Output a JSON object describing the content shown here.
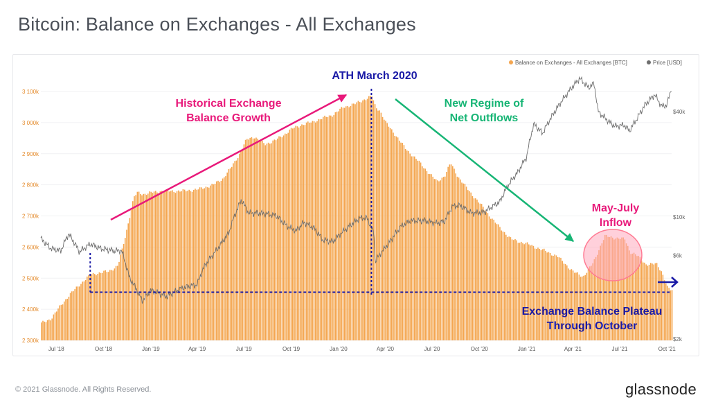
{
  "page": {
    "title": "Bitcoin: Balance on Exchanges - All Exchanges",
    "copyright": "© 2021 Glassnode. All Rights Reserved.",
    "brand": "glassnode"
  },
  "colors": {
    "balance": "#f4a650",
    "price": "#6e6e6e",
    "pink": "#e8197a",
    "navy": "#1a1aa6",
    "green": "#17b575",
    "left_axis": "#e48a2a"
  },
  "chart_data": {
    "type": "bar",
    "title": "Bitcoin: Balance on Exchanges - All Exchanges",
    "legend": {
      "position": "top-right",
      "balance_label": "Balance on Exchanges - All Exchanges [BTC]",
      "price_label": "Price [USD]"
    },
    "x_ticks": [
      "Jul '18",
      "Oct '18",
      "Jan '19",
      "Apr '19",
      "Jul '19",
      "Oct '19",
      "Jan '20",
      "Apr '20",
      "Jul '20",
      "Oct '20",
      "Jan '21",
      "Apr '21",
      "Jul '21",
      "Oct '21"
    ],
    "y_left": {
      "ticks": [
        "2 300k",
        "2 400k",
        "2 500k",
        "2 600k",
        "2 700k",
        "2 800k",
        "2 900k",
        "3 000k",
        "3 100k"
      ],
      "min": 2300000,
      "max": 3100000,
      "unit": "BTC"
    },
    "y_right": {
      "ticks": [
        "$2k",
        "$6k",
        "$10k",
        "$40k"
      ],
      "scale": "log"
    },
    "series": [
      {
        "name": "Balance on Exchanges - All Exchanges [BTC]",
        "kind": "bar",
        "dates": [
          "2018-06-01",
          "2018-06-20",
          "2018-07-10",
          "2018-07-25",
          "2018-08-15",
          "2018-09-05",
          "2018-09-25",
          "2018-10-10",
          "2018-10-28",
          "2018-11-05",
          "2018-11-12",
          "2018-11-20",
          "2018-11-28",
          "2018-12-05",
          "2018-12-15",
          "2019-01-01",
          "2019-01-20",
          "2019-02-10",
          "2019-03-01",
          "2019-04-01",
          "2019-05-01",
          "2019-05-20",
          "2019-06-05",
          "2019-06-20",
          "2019-07-05",
          "2019-07-20",
          "2019-08-10",
          "2019-09-01",
          "2019-09-15",
          "2019-10-01",
          "2019-10-20",
          "2019-11-10",
          "2019-12-01",
          "2019-12-20",
          "2020-01-10",
          "2020-02-01",
          "2020-02-20",
          "2020-03-05",
          "2020-03-12",
          "2020-03-20",
          "2020-04-01",
          "2020-04-20",
          "2020-05-10",
          "2020-06-01",
          "2020-06-20",
          "2020-07-10",
          "2020-07-25",
          "2020-08-05",
          "2020-08-20",
          "2020-09-10",
          "2020-10-01",
          "2020-10-20",
          "2020-11-10",
          "2020-12-01",
          "2021-01-01",
          "2021-02-01",
          "2021-03-01",
          "2021-04-01",
          "2021-04-20",
          "2021-05-10",
          "2021-05-20",
          "2021-06-01",
          "2021-06-20",
          "2021-07-10",
          "2021-07-20",
          "2021-08-01",
          "2021-08-20",
          "2021-09-10",
          "2021-09-20",
          "2021-10-01",
          "2021-10-08"
        ],
        "values": [
          2355000,
          2370000,
          2415000,
          2445000,
          2480000,
          2512000,
          2518000,
          2522000,
          2540000,
          2590000,
          2640000,
          2700000,
          2760000,
          2775000,
          2770000,
          2775000,
          2780000,
          2780000,
          2780000,
          2785000,
          2800000,
          2820000,
          2855000,
          2895000,
          2945000,
          2955000,
          2930000,
          2945000,
          2960000,
          2980000,
          2993000,
          3002000,
          3015000,
          3025000,
          3050000,
          3060000,
          3075000,
          3085000,
          3050000,
          3040000,
          3000000,
          2960000,
          2915000,
          2880000,
          2845000,
          2810000,
          2830000,
          2870000,
          2825000,
          2780000,
          2740000,
          2700000,
          2660000,
          2625000,
          2610000,
          2590000,
          2570000,
          2520000,
          2505000,
          2550000,
          2590000,
          2635000,
          2630000,
          2625000,
          2585000,
          2575000,
          2545000,
          2545000,
          2520000,
          2470000,
          2460000
        ]
      },
      {
        "name": "Price [USD]",
        "kind": "line",
        "dates": [
          "2018-06-01",
          "2018-06-20",
          "2018-07-10",
          "2018-07-25",
          "2018-08-15",
          "2018-09-05",
          "2018-09-25",
          "2018-10-20",
          "2018-11-05",
          "2018-11-20",
          "2018-12-05",
          "2018-12-15",
          "2019-01-01",
          "2019-02-01",
          "2019-03-01",
          "2019-04-01",
          "2019-04-15",
          "2019-05-10",
          "2019-06-01",
          "2019-06-26",
          "2019-07-10",
          "2019-08-01",
          "2019-09-01",
          "2019-09-20",
          "2019-10-10",
          "2019-10-26",
          "2019-11-15",
          "2019-12-01",
          "2019-12-20",
          "2020-01-15",
          "2020-02-10",
          "2020-02-25",
          "2020-03-10",
          "2020-03-12",
          "2020-03-20",
          "2020-04-10",
          "2020-05-01",
          "2020-05-20",
          "2020-06-15",
          "2020-07-10",
          "2020-07-25",
          "2020-08-10",
          "2020-08-25",
          "2020-09-15",
          "2020-10-10",
          "2020-10-25",
          "2020-11-10",
          "2020-11-25",
          "2020-12-15",
          "2021-01-01",
          "2021-01-15",
          "2021-02-01",
          "2021-02-20",
          "2021-03-15",
          "2021-04-14",
          "2021-05-01",
          "2021-05-12",
          "2021-05-20",
          "2021-06-10",
          "2021-06-22",
          "2021-07-10",
          "2021-07-20",
          "2021-08-05",
          "2021-08-20",
          "2021-09-07",
          "2021-09-20",
          "2021-10-01",
          "2021-10-10"
        ],
        "values": [
          7500,
          6600,
          6400,
          8000,
          6300,
          7000,
          6600,
          6400,
          6400,
          4500,
          3800,
          3300,
          3800,
          3500,
          3900,
          4100,
          5200,
          6500,
          8000,
          12500,
          10500,
          10500,
          10200,
          9000,
          8300,
          9300,
          8600,
          7400,
          7200,
          8500,
          9800,
          9900,
          8000,
          5500,
          6000,
          7200,
          8800,
          9500,
          9500,
          9200,
          9400,
          11500,
          11600,
          10500,
          10600,
          11400,
          12200,
          15000,
          18000,
          22000,
          34000,
          30000,
          38000,
          48000,
          62000,
          55000,
          58000,
          40000,
          35000,
          33000,
          33500,
          31000,
          37000,
          44000,
          50000,
          43000,
          43500,
          55000
        ]
      }
    ],
    "annotations": {
      "ath_label": "ATH March 2020",
      "growth_label_1": "Historical Exchange",
      "growth_label_2": "Balance Growth",
      "outflow_label_1": "New Regime of",
      "outflow_label_2": "Net Outflows",
      "inflow_label_1": "May-July",
      "inflow_label_2": "Inflow",
      "plateau_label_1": "Exchange Balance Plateau",
      "plateau_label_2": "Through October",
      "plateau_level": 2455000,
      "ath_date": "2020-03-05"
    }
  }
}
